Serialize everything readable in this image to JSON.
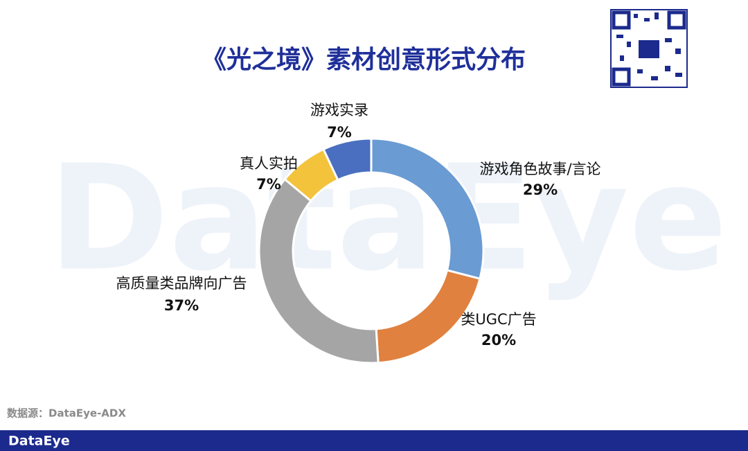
{
  "chart_data": {
    "type": "donut",
    "title": "《光之境》素材创意形式分布",
    "categories": [
      "游戏角色故事/言论",
      "类UGC广告",
      "高质量类品牌向广告",
      "真人实拍",
      "游戏实录"
    ],
    "values": [
      29,
      20,
      37,
      7,
      7
    ],
    "value_labels": [
      "29%",
      "20%",
      "37%",
      "7%",
      "7%"
    ],
    "colors": [
      "#6a9bd3",
      "#e0813f",
      "#a5a5a5",
      "#f3c33c",
      "#4a6fc0"
    ],
    "source": "数据源：DataEye-ADX"
  },
  "footer": {
    "brand": "DataEye"
  },
  "watermark": "DataEye"
}
